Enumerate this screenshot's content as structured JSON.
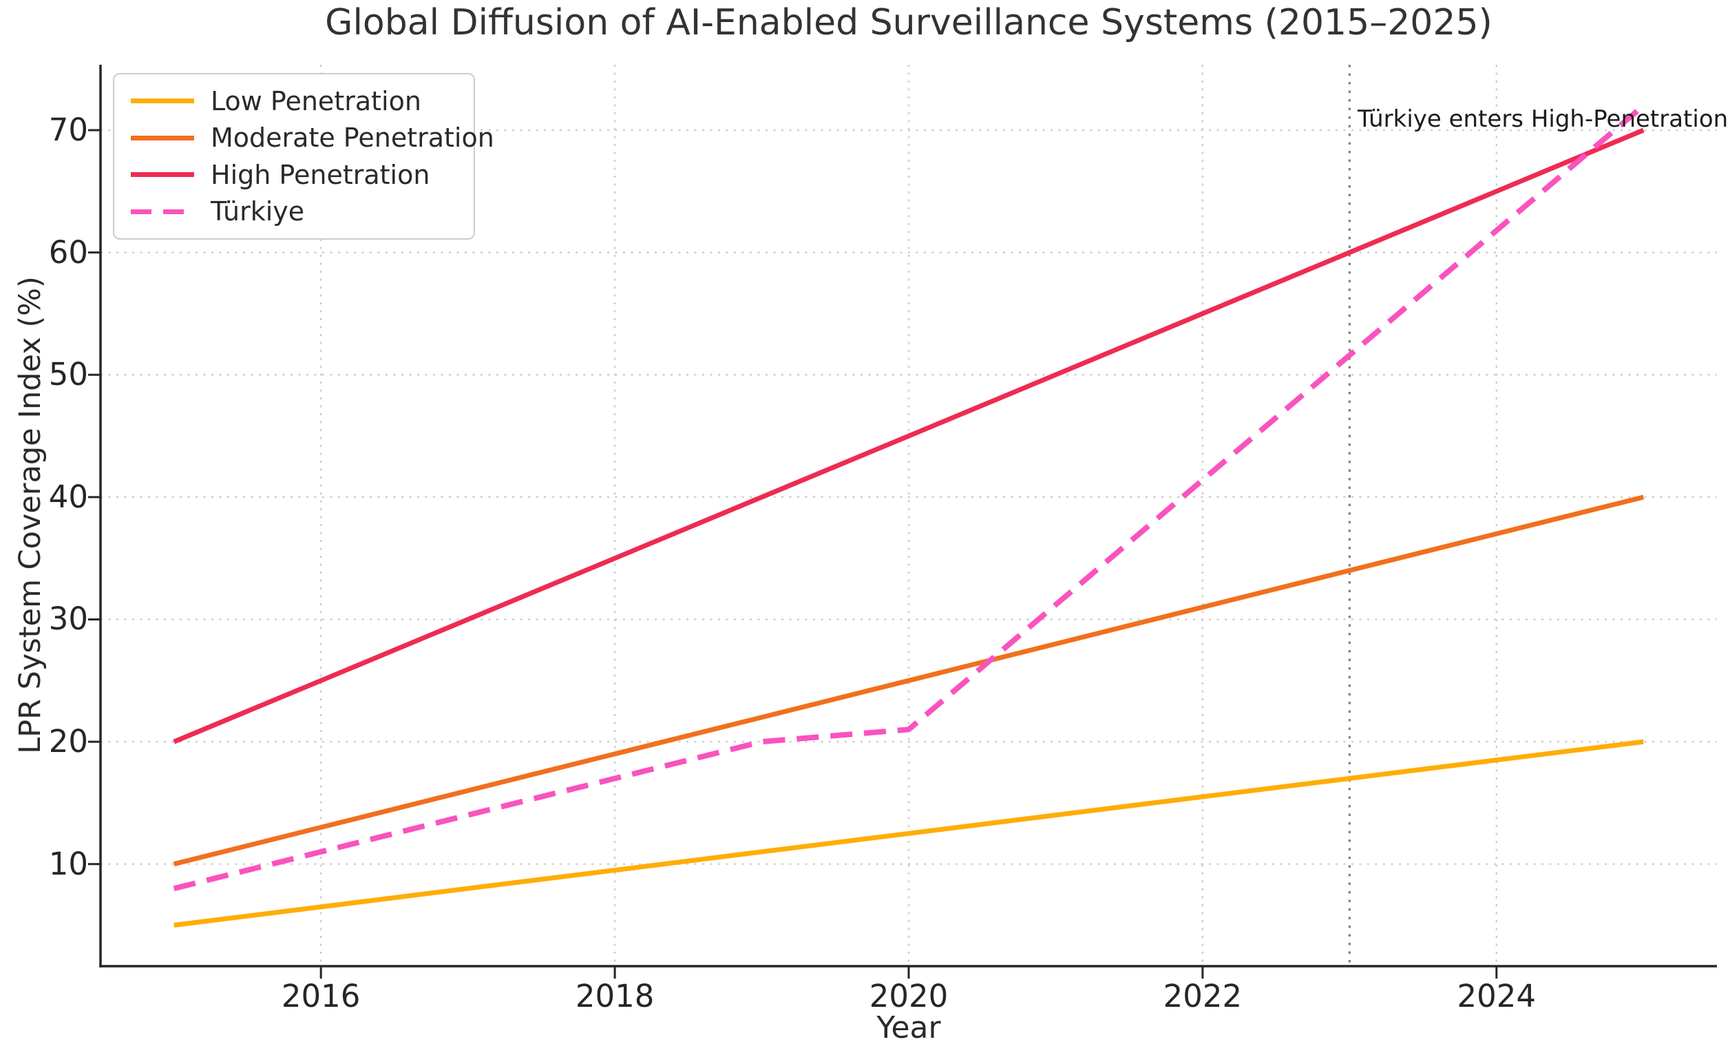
{
  "chart_data": {
    "type": "line",
    "title": "Global Diffusion of AI-Enabled Surveillance Systems (2015–2025)",
    "xlabel": "Year",
    "ylabel": "LPR System Coverage Index (%)",
    "x": [
      2015,
      2016,
      2017,
      2018,
      2019,
      2020,
      2021,
      2022,
      2023,
      2024,
      2025
    ],
    "series": [
      {
        "name": "Low Penetration",
        "color": "#FFAD05",
        "style": "solid",
        "values": [
          5,
          6.5,
          8,
          9.5,
          11,
          12.5,
          14,
          15.5,
          17,
          18.5,
          20
        ]
      },
      {
        "name": "Moderate Penetration",
        "color": "#F0701E",
        "style": "solid",
        "values": [
          10,
          13,
          16,
          19,
          22,
          25,
          28,
          31,
          34,
          37,
          40
        ]
      },
      {
        "name": "High Penetration",
        "color": "#EF2B52",
        "style": "solid",
        "values": [
          20,
          25,
          30,
          35,
          40,
          45,
          50,
          55,
          60,
          65,
          70
        ]
      },
      {
        "name": "Türkiye",
        "color": "#F953BE",
        "style": "dashed",
        "values": [
          8,
          11,
          14,
          17,
          20,
          21,
          31.2,
          41.4,
          51.6,
          61.8,
          72
        ]
      }
    ],
    "xlim": [
      2014.5,
      2025.5
    ],
    "ylim": [
      1.65,
      75.35
    ],
    "xticks": [
      2016,
      2018,
      2020,
      2022,
      2024
    ],
    "yticks": [
      10,
      20,
      30,
      40,
      50,
      60,
      70
    ],
    "grid": {
      "show": true,
      "style": "dotted",
      "color": "#cccccc"
    },
    "legend": {
      "position": "upper left"
    },
    "annotation": {
      "text": "Türkiye enters High-Penetration",
      "year": 2023,
      "line_style": "dotted",
      "line_color": "#7d7d7d"
    }
  }
}
